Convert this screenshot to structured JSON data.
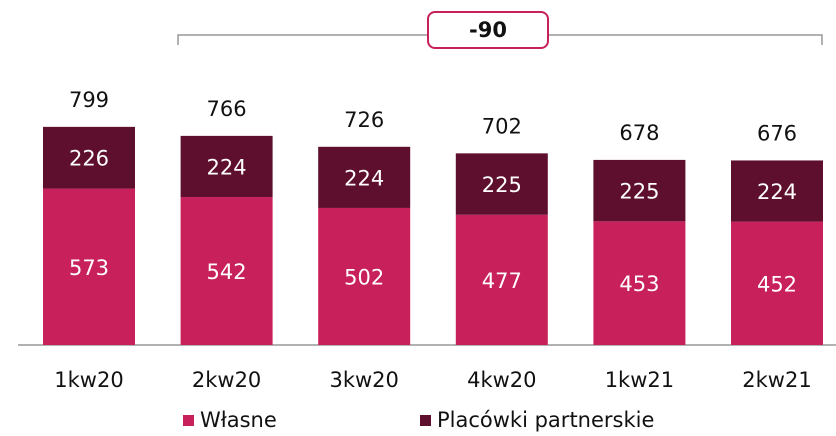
{
  "chart_data": {
    "type": "stacked_bar",
    "categories": [
      "1kw20",
      "2kw20",
      "3kw20",
      "4kw20",
      "1kw21",
      "2kw21"
    ],
    "series": [
      {
        "name": "Własne",
        "color": "#c8205a",
        "values": [
          573,
          542,
          502,
          477,
          453,
          452
        ]
      },
      {
        "name": "Placówki partnerskie",
        "color": "#5e0f2d",
        "values": [
          226,
          224,
          224,
          225,
          225,
          224
        ]
      }
    ],
    "totals": [
      799,
      766,
      726,
      702,
      678,
      676
    ],
    "annotation": "-90"
  }
}
